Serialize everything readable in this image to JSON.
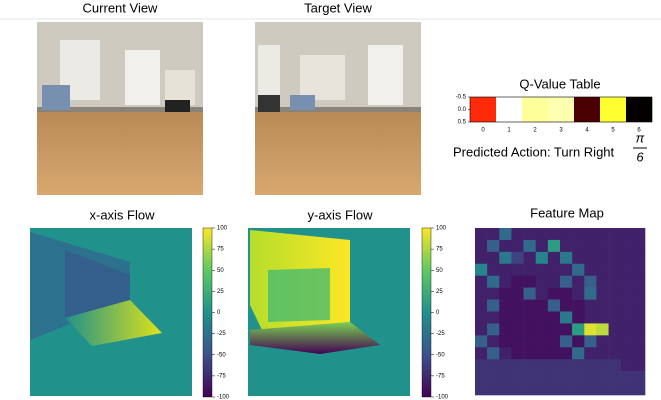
{
  "current_view": {
    "title": "Current View"
  },
  "target_view": {
    "title": "Target View"
  },
  "q_value_table": {
    "title": "Q-Value Table",
    "categories": [
      "0",
      "1",
      "2",
      "3",
      "4",
      "5",
      "6"
    ],
    "colors": [
      "#ff2a0a",
      "#ffffff",
      "#ffff9a",
      "#ffffb0",
      "#4a0000",
      "#ffff30",
      "#050000"
    ],
    "ylim": [
      -0.5,
      0.5
    ],
    "yticks": [
      -0.5,
      {
        "value": 0,
        "label": "0.0"
      },
      0.5
    ]
  },
  "predicted_action": {
    "text": "Predicted Action: Turn Right",
    "numerator": "π",
    "denominator": "6"
  },
  "x_flow": {
    "title": "x-axis Flow",
    "clim": [
      -100,
      100
    ],
    "cticks": [
      100,
      75,
      50,
      25,
      0,
      -25,
      -50,
      -75,
      -100
    ]
  },
  "y_flow": {
    "title": "y-axis Flow",
    "clim": [
      -100,
      100
    ],
    "cticks": [
      100,
      75,
      50,
      25,
      0,
      -25,
      -50,
      -75,
      -100
    ]
  },
  "feature_map": {
    "title": "Feature Map",
    "clim": [
      0,
      1
    ],
    "values": [
      [
        0.1,
        0.1,
        0.35,
        0.1,
        0.1,
        0.1,
        0.1,
        0.1,
        0.1,
        0.1,
        0.1,
        0.1,
        0.1,
        0.1
      ],
      [
        0.1,
        0.3,
        0.1,
        0.1,
        0.35,
        0.1,
        0.55,
        0.1,
        0.1,
        0.1,
        0.1,
        0.1,
        0.1,
        0.1
      ],
      [
        0.1,
        0.1,
        0.4,
        0.2,
        0.1,
        0.45,
        0.1,
        0.4,
        0.1,
        0.1,
        0.1,
        0.1,
        0.1,
        0.1
      ],
      [
        0.45,
        0.1,
        0.1,
        0.1,
        0.1,
        0.1,
        0.1,
        0.1,
        0.35,
        0.1,
        0.1,
        0.1,
        0.1,
        0.1
      ],
      [
        0.1,
        0.35,
        0.1,
        0.05,
        0.05,
        0.1,
        0.1,
        0.3,
        0.1,
        0.3,
        0.1,
        0.1,
        0.1,
        0.1
      ],
      [
        0.1,
        0.1,
        0.05,
        0.05,
        0.3,
        0.1,
        0.05,
        0.05,
        0.1,
        0.35,
        0.1,
        0.1,
        0.1,
        0.1
      ],
      [
        0.1,
        0.3,
        0.05,
        0.05,
        0.05,
        0.05,
        0.3,
        0.05,
        0.05,
        0.1,
        0.1,
        0.1,
        0.1,
        0.1
      ],
      [
        0.1,
        0.1,
        0.05,
        0.05,
        0.05,
        0.05,
        0.05,
        0.4,
        0.05,
        0.1,
        0.1,
        0.1,
        0.1,
        0.1
      ],
      [
        0.1,
        0.3,
        0.05,
        0.05,
        0.05,
        0.05,
        0.05,
        0.05,
        0.55,
        0.95,
        0.9,
        0.1,
        0.1,
        0.1
      ],
      [
        0.3,
        0.1,
        0.05,
        0.05,
        0.05,
        0.05,
        0.05,
        0.3,
        0.05,
        0.3,
        0.1,
        0.1,
        0.1,
        0.1
      ],
      [
        0.1,
        0.3,
        0.1,
        0.05,
        0.05,
        0.05,
        0.05,
        0.05,
        0.35,
        0.1,
        0.1,
        0.1,
        0.1,
        0.1
      ],
      [
        0.15,
        0.15,
        0.15,
        0.15,
        0.15,
        0.15,
        0.15,
        0.15,
        0.15,
        0.15,
        0.15,
        0.15,
        0.1,
        0.1
      ],
      [
        0.15,
        0.15,
        0.15,
        0.15,
        0.15,
        0.15,
        0.15,
        0.15,
        0.15,
        0.15,
        0.15,
        0.15,
        0.15,
        0.15
      ],
      [
        0.15,
        0.15,
        0.15,
        0.15,
        0.15,
        0.15,
        0.15,
        0.15,
        0.15,
        0.15,
        0.15,
        0.15,
        0.15,
        0.15
      ]
    ]
  }
}
